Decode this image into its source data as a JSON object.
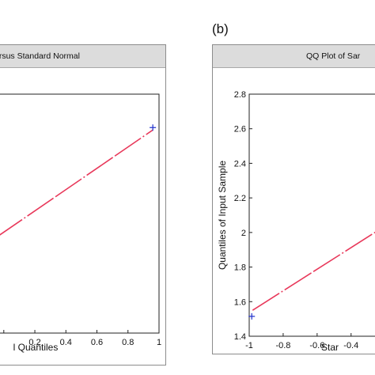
{
  "panels": [
    {
      "letter": "",
      "window_title": "ersus Standard Normal",
      "xlabel": "l Quantiles",
      "ylabel": "",
      "chart_data": {
        "type": "line",
        "xlim": [
          -0.05,
          1.0
        ],
        "ylim": [
          0.0,
          1.0
        ],
        "x_ticks": [
          {
            "value": 0.0,
            "label": ""
          },
          {
            "value": 0.2,
            "label": "0.2"
          },
          {
            "value": 0.4,
            "label": "0.4"
          },
          {
            "value": 0.6,
            "label": "0.6"
          },
          {
            "value": 0.8,
            "label": "0.8"
          },
          {
            "value": 1.0,
            "label": "1"
          }
        ],
        "y_ticks": [],
        "reference_line": {
          "x": [
            -0.05,
            0.96
          ],
          "y": [
            0.4,
            0.85
          ]
        },
        "points": [
          {
            "x": 0.96,
            "y": 0.86
          }
        ],
        "grid": false,
        "legend": "none"
      }
    },
    {
      "letter": "(b)",
      "window_title": "QQ Plot of Sar",
      "xlabel": "Star",
      "ylabel": "Quantiles of Input Sample",
      "chart_data": {
        "type": "line",
        "xlim": [
          -1.0,
          -0.18
        ],
        "ylim": [
          1.4,
          2.8
        ],
        "x_ticks": [
          {
            "value": -1.0,
            "label": "-1"
          },
          {
            "value": -0.8,
            "label": "-0.8"
          },
          {
            "value": -0.6,
            "label": "-0.6"
          },
          {
            "value": -0.4,
            "label": "-0.4"
          }
        ],
        "y_ticks": [
          {
            "value": 1.4,
            "label": "1.4"
          },
          {
            "value": 1.6,
            "label": "1.6"
          },
          {
            "value": 1.8,
            "label": "1.8"
          },
          {
            "value": 2.0,
            "label": "2"
          },
          {
            "value": 2.2,
            "label": "2.2"
          },
          {
            "value": 2.4,
            "label": "2.4"
          },
          {
            "value": 2.6,
            "label": "2.6"
          },
          {
            "value": 2.8,
            "label": "2.8"
          }
        ],
        "reference_line": {
          "x": [
            -0.98,
            -0.18
          ],
          "y": [
            1.55,
            2.05
          ]
        },
        "points": [
          {
            "x": -0.985,
            "y": 1.515
          }
        ],
        "grid": false,
        "legend": "none"
      }
    }
  ],
  "colors": {
    "line": "#e8385a",
    "marker": "#2233cc",
    "axis": "#222222",
    "titlebar": "#dcdcdc"
  }
}
